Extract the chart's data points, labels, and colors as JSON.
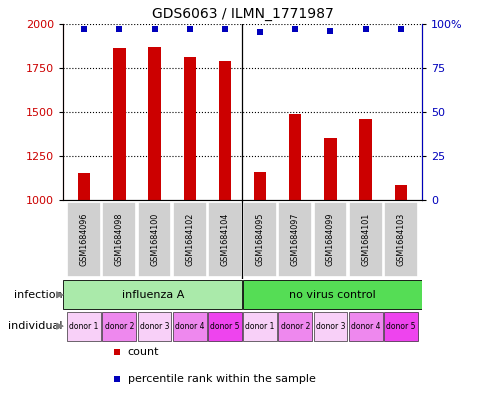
{
  "title": "GDS6063 / ILMN_1771987",
  "samples": [
    "GSM1684096",
    "GSM1684098",
    "GSM1684100",
    "GSM1684102",
    "GSM1684104",
    "GSM1684095",
    "GSM1684097",
    "GSM1684099",
    "GSM1684101",
    "GSM1684103"
  ],
  "counts": [
    1155,
    1860,
    1870,
    1810,
    1790,
    1160,
    1490,
    1355,
    1460,
    1085
  ],
  "percentiles": [
    97,
    97,
    97,
    97,
    97,
    95,
    97,
    96,
    97,
    97
  ],
  "bar_color": "#cc0000",
  "dot_color": "#0000bb",
  "ylim_left": [
    1000,
    2000
  ],
  "ylim_right": [
    0,
    100
  ],
  "yticks_left": [
    1000,
    1250,
    1500,
    1750,
    2000
  ],
  "yticks_right": [
    0,
    25,
    50,
    75,
    100
  ],
  "groups": [
    {
      "label": "influenza A",
      "color": "#aaeaaa"
    },
    {
      "label": "no virus control",
      "color": "#55dd55"
    }
  ],
  "donors": [
    "donor 1",
    "donor 2",
    "donor 3",
    "donor 4",
    "donor 5",
    "donor 1",
    "donor 2",
    "donor 3",
    "donor 4",
    "donor 5"
  ],
  "donor_colors": [
    "#f8d0f8",
    "#ee88ee",
    "#f8d0f8",
    "#ee88ee",
    "#ee44ee",
    "#f8d0f8",
    "#ee88ee",
    "#f8d0f8",
    "#ee88ee",
    "#ee44ee"
  ],
  "sample_box_color": "#d0d0d0",
  "infection_label": "infection",
  "individual_label": "individual",
  "legend_count_label": "count",
  "legend_percentile_label": "percentile rank within the sample",
  "bar_width": 0.35
}
